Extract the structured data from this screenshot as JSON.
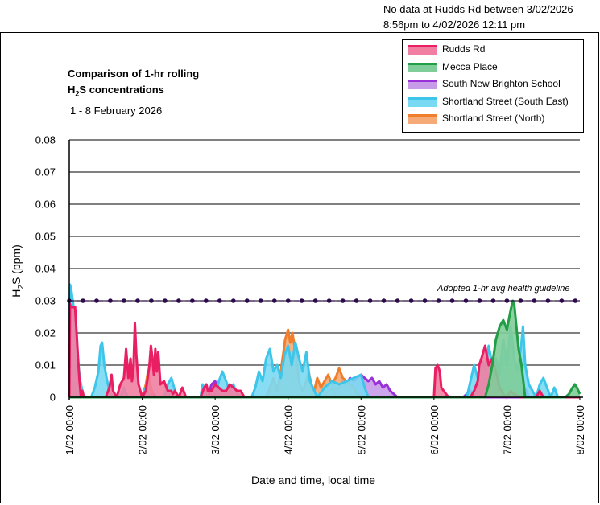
{
  "note": {
    "line1": "No data at Rudds Rd between 3/02/2026",
    "line2": "8:56pm to 4/02/2026 12:11 pm"
  },
  "title": {
    "line1": "Comparison of 1-hr rolling",
    "line2_pre": "H",
    "line2_sub": "2",
    "line2_post": "S concentrations",
    "subtitle": "1 - 8 February 2026"
  },
  "chart_data": {
    "type": "area",
    "title": "Comparison of 1-hr rolling H2S concentrations",
    "subtitle": "1 - 8 February 2026",
    "xlabel": "Date and time, local time",
    "ylabel": "H2S (ppm)",
    "ylabel_parts": {
      "pre": "H",
      "sub": "2",
      "post": "S (ppm)"
    },
    "xlim_days": [
      0,
      7
    ],
    "ylim": [
      0,
      0.08
    ],
    "yticks": [
      0,
      0.01,
      0.02,
      0.03,
      0.04,
      0.05,
      0.06,
      0.07,
      0.08
    ],
    "ytick_labels": [
      "0",
      "0.01",
      "0.02",
      "0.03",
      "0.04",
      "0.05",
      "0.06",
      "0.07",
      "0.08"
    ],
    "xticks": [
      0,
      1,
      2,
      3,
      4,
      5,
      6,
      7
    ],
    "xtick_labels": [
      "1/02 00:00",
      "2/02 00:00",
      "3/02 00:00",
      "4/02 00:00",
      "5/02 00:00",
      "6/02 00:00",
      "7/02 00:00",
      "8/02 00:00"
    ],
    "grid": "horizontal",
    "legend_position": "top-right",
    "guideline": {
      "label": "Adopted 1-hr avg health guideline",
      "value": 0.03,
      "color": "#2b0a4a"
    },
    "series": [
      {
        "name": "South New Brighton School",
        "fill": "#c79be8",
        "line": "#9b30d9",
        "x": [
          0.0,
          0.02,
          0.05,
          0.08,
          0.1,
          1.0,
          1.05,
          1.1,
          1.15,
          1.2,
          1.9,
          1.95,
          2.0,
          2.05,
          2.1,
          3.5,
          3.55,
          3.6,
          3.65,
          3.7,
          3.75,
          3.8,
          3.85,
          3.9,
          3.95,
          4.0,
          4.05,
          4.1,
          4.15,
          4.2,
          4.25,
          4.3,
          4.35,
          4.4,
          4.45,
          4.5,
          5.4,
          5.45,
          5.5,
          5.55,
          5.6,
          6.2,
          6.23,
          6.27,
          6.3,
          7.0
        ],
        "y": [
          0,
          0.003,
          0.004,
          0.002,
          0,
          0,
          0.002,
          0.003,
          0.001,
          0,
          0,
          0.004,
          0.005,
          0.002,
          0,
          0,
          0.002,
          0.003,
          0.001,
          0.003,
          0.005,
          0.004,
          0.006,
          0.005,
          0.006,
          0.007,
          0.006,
          0.005,
          0.006,
          0.004,
          0.005,
          0.003,
          0.004,
          0.002,
          0.001,
          0,
          0,
          0.001,
          0.002,
          0.001,
          0,
          0,
          0.003,
          0.002,
          0,
          0
        ]
      },
      {
        "name": "Shortland Street (North)",
        "fill": "#f5aa78",
        "line": "#f07f2d",
        "x": [
          1.0,
          1.05,
          1.08,
          1.12,
          1.15,
          2.7,
          2.75,
          2.8,
          2.85,
          2.9,
          2.93,
          2.96,
          3.0,
          3.03,
          3.06,
          3.1,
          3.13,
          3.16,
          3.2,
          3.25,
          3.28,
          3.32,
          3.36,
          3.4,
          3.45,
          3.5,
          3.55,
          3.6,
          3.65,
          3.7,
          3.75,
          3.8,
          3.85,
          3.9,
          3.95,
          4.0
        ],
        "y": [
          0,
          0.004,
          0.008,
          0.003,
          0,
          0,
          0.003,
          0.006,
          0.002,
          0.008,
          0.013,
          0.018,
          0.021,
          0.017,
          0.02,
          0.014,
          0.009,
          0.004,
          0.002,
          0.005,
          0.008,
          0.004,
          0.002,
          0.006,
          0.003,
          0.005,
          0.007,
          0.004,
          0.006,
          0.009,
          0.006,
          0.005,
          0.004,
          0.003,
          0.001,
          0
        ]
      },
      {
        "name": "Shortland Street (South East)",
        "fill": "#7ad9f3",
        "line": "#3ec6ea",
        "x": [
          0.0,
          0.01,
          0.03,
          0.06,
          0.1,
          0.15,
          0.2,
          0.3,
          0.35,
          0.4,
          0.43,
          0.45,
          0.48,
          0.52,
          0.55,
          0.6,
          0.7,
          0.75,
          0.8,
          0.9,
          1.0,
          1.05,
          1.1,
          1.2,
          1.3,
          1.35,
          1.4,
          1.45,
          1.5,
          1.6,
          1.8,
          1.83,
          1.86,
          1.9,
          2.0,
          2.05,
          2.1,
          2.15,
          2.2,
          2.25,
          2.3,
          2.4,
          2.5,
          2.55,
          2.6,
          2.65,
          2.7,
          2.75,
          2.8,
          2.85,
          2.9,
          2.95,
          3.0,
          3.05,
          3.1,
          3.15,
          3.2,
          3.25,
          3.3,
          3.4,
          3.5,
          3.6,
          3.7,
          3.8,
          3.9,
          4.0,
          4.05,
          4.1,
          5.45,
          5.5,
          5.55,
          5.6,
          5.65,
          5.7,
          5.75,
          5.8,
          5.85,
          5.9,
          5.95,
          6.0,
          6.05,
          6.1,
          6.15,
          6.2,
          6.22,
          6.25,
          6.3,
          6.4,
          6.45,
          6.5,
          6.55,
          6.6,
          6.65,
          6.7,
          7.0
        ],
        "y": [
          0.02,
          0.035,
          0.033,
          0.028,
          0.015,
          0.005,
          0,
          0,
          0.003,
          0.008,
          0.016,
          0.017,
          0.01,
          0.005,
          0.002,
          0,
          0,
          0.003,
          0,
          0,
          0,
          0.003,
          0,
          0,
          0,
          0.004,
          0.006,
          0.002,
          0,
          0,
          0,
          0.004,
          0.002,
          0,
          0,
          0.005,
          0.008,
          0.005,
          0.002,
          0.004,
          0.001,
          0,
          0,
          0.003,
          0.008,
          0.005,
          0.012,
          0.015,
          0.008,
          0.01,
          0.006,
          0.013,
          0.016,
          0.01,
          0.017,
          0.012,
          0.008,
          0.014,
          0.005,
          0,
          0.003,
          0.005,
          0.004,
          0.005,
          0.006,
          0.007,
          0.003,
          0,
          0,
          0.005,
          0.01,
          0.006,
          0.012,
          0.009,
          0.016,
          0.01,
          0.012,
          0.007,
          0.018,
          0.01,
          0.022,
          0.012,
          0.008,
          0.017,
          0.022,
          0.01,
          0.004,
          0,
          0.004,
          0.006,
          0.003,
          0,
          0.003,
          0,
          0
        ]
      },
      {
        "name": "Rudds Rd",
        "fill": "#f07fa2",
        "line": "#ea1e63",
        "x": [
          0.0,
          0.01,
          0.02,
          0.05,
          0.08,
          0.1,
          0.12,
          0.14,
          0.16,
          0.18,
          0.2,
          0.5,
          0.55,
          0.58,
          0.6,
          0.65,
          0.7,
          0.75,
          0.78,
          0.81,
          0.84,
          0.86,
          0.88,
          0.9,
          0.92,
          0.95,
          1.0,
          1.05,
          1.1,
          1.12,
          1.14,
          1.16,
          1.18,
          1.2,
          1.22,
          1.25,
          1.3,
          1.35,
          1.4,
          1.42,
          1.45,
          1.5,
          1.55,
          1.6,
          1.8,
          1.85,
          1.88,
          1.9,
          1.95,
          2.0,
          2.1,
          2.15,
          2.2,
          2.25,
          2.3,
          2.35,
          2.4,
          2.45,
          2.5,
          2.55,
          2.6,
          2.7,
          2.75,
          2.8,
          2.85,
          2.9,
          4.95,
          5.0,
          5.02,
          5.05,
          5.08,
          5.1,
          5.2,
          5.5,
          5.55,
          5.6,
          5.62,
          5.65,
          5.7,
          5.75,
          5.8,
          5.85,
          5.9,
          5.95,
          6.0,
          6.05,
          6.1,
          6.2,
          6.4,
          6.45,
          6.5,
          7.0
        ],
        "y": [
          0,
          0.029,
          0.028,
          0.028,
          0.028,
          0.02,
          0.012,
          0.005,
          0,
          0.002,
          0,
          0,
          0.003,
          0.007,
          0.002,
          0,
          0.004,
          0.006,
          0.015,
          0.006,
          0.012,
          0.005,
          0.009,
          0.023,
          0.013,
          0.004,
          0,
          0.002,
          0.01,
          0.016,
          0.012,
          0.007,
          0.015,
          0.008,
          0.014,
          0.004,
          0.005,
          0.002,
          0.002,
          0.001,
          0.002,
          0,
          0.003,
          0,
          0,
          0.003,
          0.004,
          0.002,
          0.002,
          0.004,
          0.002,
          0.002,
          0.004,
          0.003,
          0.002,
          0.002,
          0,
          0,
          0,
          0,
          0,
          0,
          0,
          0,
          0,
          0,
          0,
          0,
          0.009,
          0.01,
          0.008,
          0.003,
          0,
          0,
          0.002,
          0.005,
          0.01,
          0.012,
          0.016,
          0.01,
          0.012,
          0.008,
          0.003,
          0.001,
          0,
          0.002,
          0.001,
          0,
          0,
          0.002,
          0,
          0
        ]
      },
      {
        "name": "Mecca Place",
        "fill": "#7fcd99",
        "line": "#229e46",
        "x": [
          0.0,
          5.7,
          5.75,
          5.8,
          5.85,
          5.9,
          5.95,
          6.0,
          6.05,
          6.08,
          6.1,
          6.13,
          6.16,
          6.2,
          6.25,
          6.8,
          6.85,
          6.9,
          6.93,
          6.96,
          7.0
        ],
        "y": [
          0,
          0,
          0.004,
          0.01,
          0.018,
          0.022,
          0.024,
          0.021,
          0.027,
          0.03,
          0.029,
          0.022,
          0.015,
          0.01,
          0,
          0,
          0.001,
          0.003,
          0.004,
          0.003,
          0.001
        ]
      }
    ]
  },
  "legend_order": [
    3,
    4,
    0,
    2,
    1
  ]
}
